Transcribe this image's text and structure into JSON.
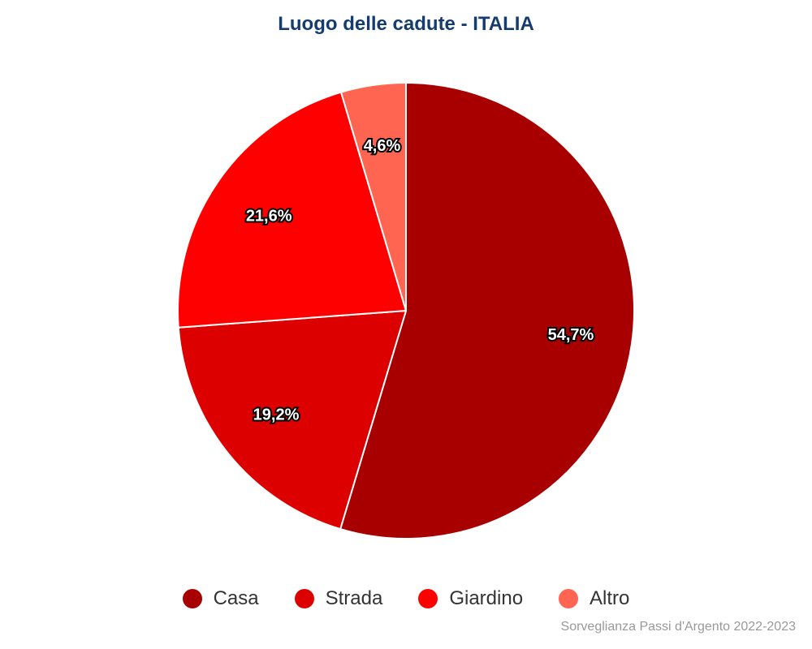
{
  "chart_data": {
    "type": "pie",
    "title": "Luogo delle cadute - ITALIA",
    "categories": [
      "Casa",
      "Strada",
      "Giardino",
      "Altro"
    ],
    "values": [
      54.7,
      19.2,
      21.6,
      4.6
    ],
    "value_labels": [
      "54,7%",
      "19,2%",
      "21,6%",
      "4,6%"
    ],
    "colors": [
      "#a80000",
      "#dc0000",
      "#ff0000",
      "#ff6550"
    ],
    "start_angle_deg": 0,
    "direction": "clockwise",
    "legend_position": "bottom"
  },
  "source_note": "Sorveglianza Passi d'Argento 2022-2023"
}
